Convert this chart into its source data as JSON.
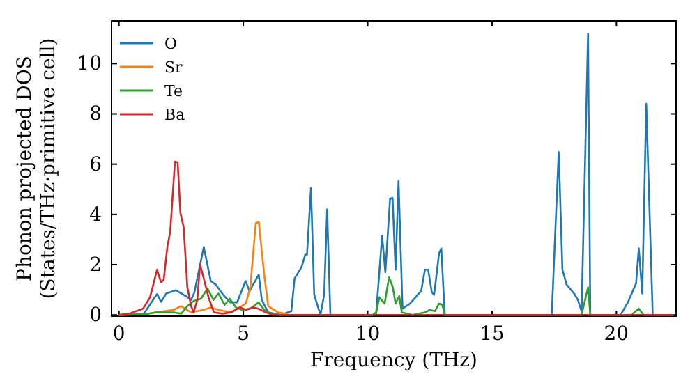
{
  "chart_data": {
    "type": "line",
    "xlabel": "Frequency (THz)",
    "ylabel": "Phonon projected DOS\n(States/THz·primitive cell)",
    "xlim": [
      -0.3,
      22.4
    ],
    "ylim": [
      -0.05,
      11.7
    ],
    "xticks": [
      0,
      5,
      10,
      15,
      20
    ],
    "yticks": [
      0,
      2,
      4,
      6,
      8,
      10
    ],
    "grid": false,
    "legend": "top left",
    "marker": "none",
    "line_style": "solid",
    "series": [
      {
        "name": "O",
        "color": "#1f77b4",
        "x": [
          0,
          1.0,
          1.53,
          1.69,
          1.9,
          2.29,
          2.67,
          2.9,
          3.03,
          3.41,
          3.69,
          3.9,
          4.19,
          4.47,
          4.75,
          5.09,
          5.25,
          5.62,
          5.74,
          6.0,
          6.5,
          6.93,
          7.06,
          7.34,
          7.49,
          7.56,
          7.72,
          7.85,
          8.1,
          8.25,
          8.37,
          8.5,
          10.2,
          10.34,
          10.58,
          10.71,
          10.9,
          11.0,
          11.12,
          11.24,
          11.4,
          11.7,
          12.15,
          12.3,
          12.43,
          12.58,
          12.67,
          12.87,
          12.96,
          13.1,
          17.4,
          17.68,
          17.83,
          18.0,
          18.3,
          18.45,
          18.6,
          18.86,
          18.95,
          20.17,
          20.46,
          20.79,
          20.9,
          21.04,
          21.2,
          21.46,
          22.3
        ],
        "values": [
          0,
          0.05,
          0.83,
          0.52,
          0.85,
          0.98,
          0.76,
          0.6,
          0.89,
          2.7,
          1.35,
          1.2,
          0.8,
          0.5,
          0.5,
          1.35,
          0.95,
          1.6,
          0.6,
          0.1,
          0,
          0.15,
          1.45,
          1.9,
          2.4,
          2.4,
          5.05,
          0.8,
          0,
          0.8,
          4.2,
          0,
          0,
          0.05,
          3.15,
          1.7,
          4.63,
          4.65,
          1.8,
          5.33,
          0.25,
          0.45,
          0.95,
          1.8,
          1.8,
          0.9,
          0.8,
          2.45,
          2.65,
          0,
          0,
          6.48,
          1.8,
          1.2,
          0.85,
          0.6,
          0.15,
          11.17,
          0,
          0,
          0.5,
          1.25,
          2.65,
          0.85,
          8.4,
          0,
          0
        ]
      },
      {
        "name": "Sr",
        "color": "#ff7f0e",
        "x": [
          0,
          1.0,
          1.5,
          2.2,
          2.5,
          2.9,
          3.4,
          3.7,
          4.0,
          4.5,
          5.1,
          5.28,
          5.5,
          5.62,
          5.84,
          6.0,
          6.4,
          6.8
        ],
        "values": [
          0,
          0.02,
          0.1,
          0.2,
          0.35,
          0.1,
          0.2,
          0.3,
          0.2,
          0.1,
          0.45,
          1.1,
          3.65,
          3.7,
          1.6,
          0.35,
          0.1,
          0.03
        ]
      },
      {
        "name": "Te",
        "color": "#2ca02c",
        "x": [
          0,
          1.0,
          1.5,
          2.2,
          2.5,
          2.75,
          3.0,
          3.3,
          3.56,
          3.8,
          4.0,
          4.25,
          4.45,
          4.7,
          4.95,
          5.28,
          5.62,
          5.84,
          6.1,
          6.5,
          10.2,
          10.34,
          10.47,
          10.68,
          10.86,
          11.01,
          11.12,
          11.27,
          11.37,
          11.8,
          12.3,
          12.5,
          12.7,
          12.87,
          13.0,
          13.1,
          18.6,
          18.86,
          18.95,
          20.6,
          20.9,
          21.1,
          22.3
        ],
        "values": [
          0,
          0.02,
          0.1,
          0.1,
          0.05,
          0.35,
          0.55,
          0.65,
          1.05,
          0.6,
          0.85,
          0.4,
          0.65,
          0.3,
          0.2,
          0.25,
          0.5,
          0.2,
          0.05,
          0,
          0,
          0.1,
          0.7,
          0.45,
          1.5,
          1.1,
          0.45,
          0.75,
          0.1,
          0,
          0.1,
          0.2,
          0.15,
          0.45,
          0.4,
          0,
          0,
          1.1,
          0,
          0,
          0.25,
          0,
          0
        ]
      },
      {
        "name": "Ba",
        "color": "#d62728",
        "x": [
          0,
          0.41,
          0.97,
          1.25,
          1.53,
          1.69,
          1.8,
          1.95,
          2.06,
          2.25,
          2.36,
          2.47,
          2.6,
          2.75,
          2.9,
          3.0,
          3.15,
          3.26,
          3.41,
          3.6,
          3.82,
          4.16,
          4.5,
          4.87,
          5.1,
          5.4,
          5.6,
          5.9,
          6.2,
          22.3
        ],
        "values": [
          0,
          0.05,
          0.25,
          0.7,
          1.8,
          1.3,
          1.4,
          2.75,
          3.3,
          6.1,
          6.07,
          4.05,
          3.5,
          1.1,
          0.35,
          0.1,
          0.6,
          2.0,
          1.45,
          0.7,
          0.1,
          0.05,
          0.1,
          0.3,
          0.2,
          0.3,
          0.25,
          0.1,
          0,
          0
        ]
      }
    ]
  }
}
